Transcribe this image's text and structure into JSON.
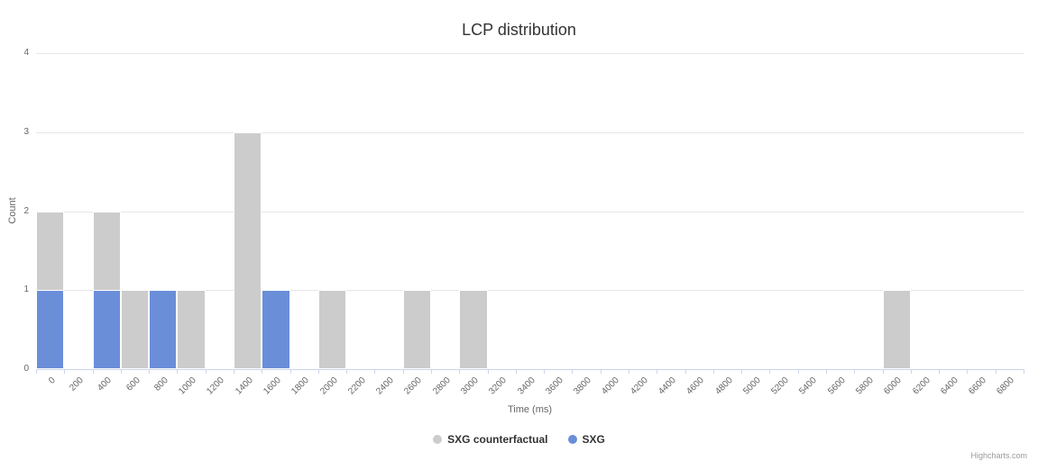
{
  "credits": "Highcharts.com",
  "chart_data": {
    "type": "bar",
    "title": "LCP distribution",
    "xlabel": "Time (ms)",
    "ylabel": "Count",
    "ylim": [
      0,
      4
    ],
    "y_ticks": [
      0,
      1,
      2,
      3,
      4
    ],
    "grid": true,
    "legend_position": "bottom",
    "bars_overlap": true,
    "categories": [
      "0",
      "200",
      "400",
      "600",
      "800",
      "1000",
      "1200",
      "1400",
      "1600",
      "1800",
      "2000",
      "2200",
      "2400",
      "2600",
      "2800",
      "3000",
      "3200",
      "3400",
      "3600",
      "3800",
      "4000",
      "4200",
      "4400",
      "4600",
      "4800",
      "5000",
      "5200",
      "5400",
      "5600",
      "5800",
      "6000",
      "6200",
      "6400",
      "6600",
      "6800"
    ],
    "series": [
      {
        "name": "SXG counterfactual",
        "color": "#cccccc",
        "values": [
          2,
          0,
          2,
          1,
          0,
          1,
          0,
          3,
          0,
          0,
          1,
          0,
          0,
          1,
          0,
          1,
          0,
          0,
          0,
          0,
          0,
          0,
          0,
          0,
          0,
          0,
          0,
          0,
          0,
          0,
          1,
          0,
          0,
          0,
          0
        ]
      },
      {
        "name": "SXG",
        "color": "#6b8ed9",
        "values": [
          1,
          0,
          1,
          0,
          1,
          0,
          0,
          0,
          1,
          0,
          0,
          0,
          0,
          0,
          0,
          0,
          0,
          0,
          0,
          0,
          0,
          0,
          0,
          0,
          0,
          0,
          0,
          0,
          0,
          0,
          0,
          0,
          0,
          0,
          0
        ]
      }
    ]
  }
}
